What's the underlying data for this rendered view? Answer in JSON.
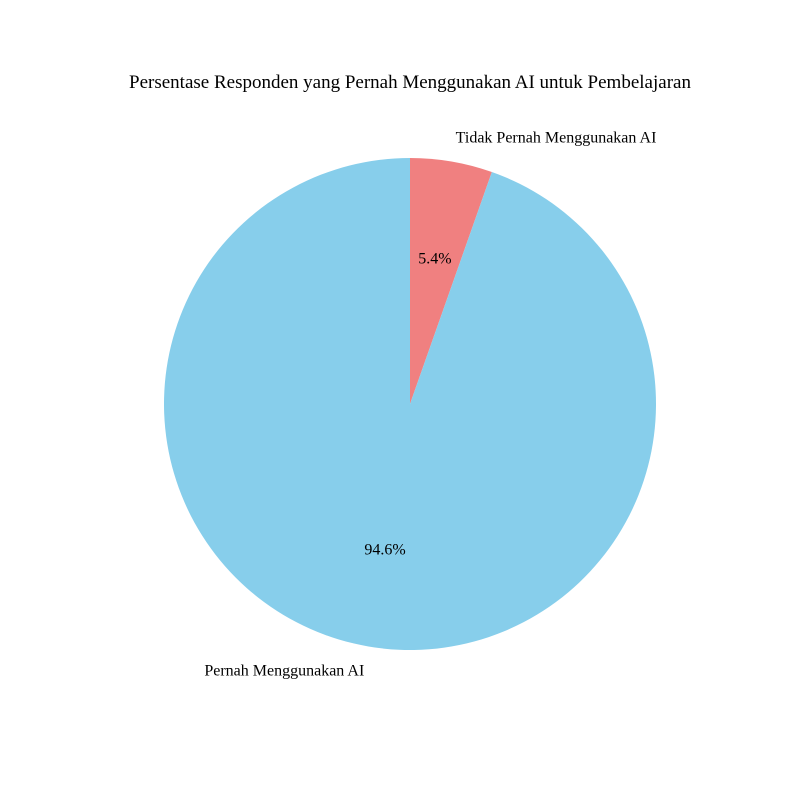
{
  "chart_data": {
    "type": "pie",
    "title": "Persentase Responden yang Pernah Menggunakan AI untuk Pembelajaran",
    "slices": [
      {
        "label": "Tidak Pernah Menggunakan AI",
        "value": 5.4,
        "pct_label": "5.4%",
        "color": "#F08080"
      },
      {
        "label": "Pernah Menggunakan AI",
        "value": 94.6,
        "pct_label": "94.6%",
        "color": "#87CEEB"
      }
    ],
    "start_angle": "top (12 o'clock), counter-clockwise",
    "legend": "none"
  }
}
